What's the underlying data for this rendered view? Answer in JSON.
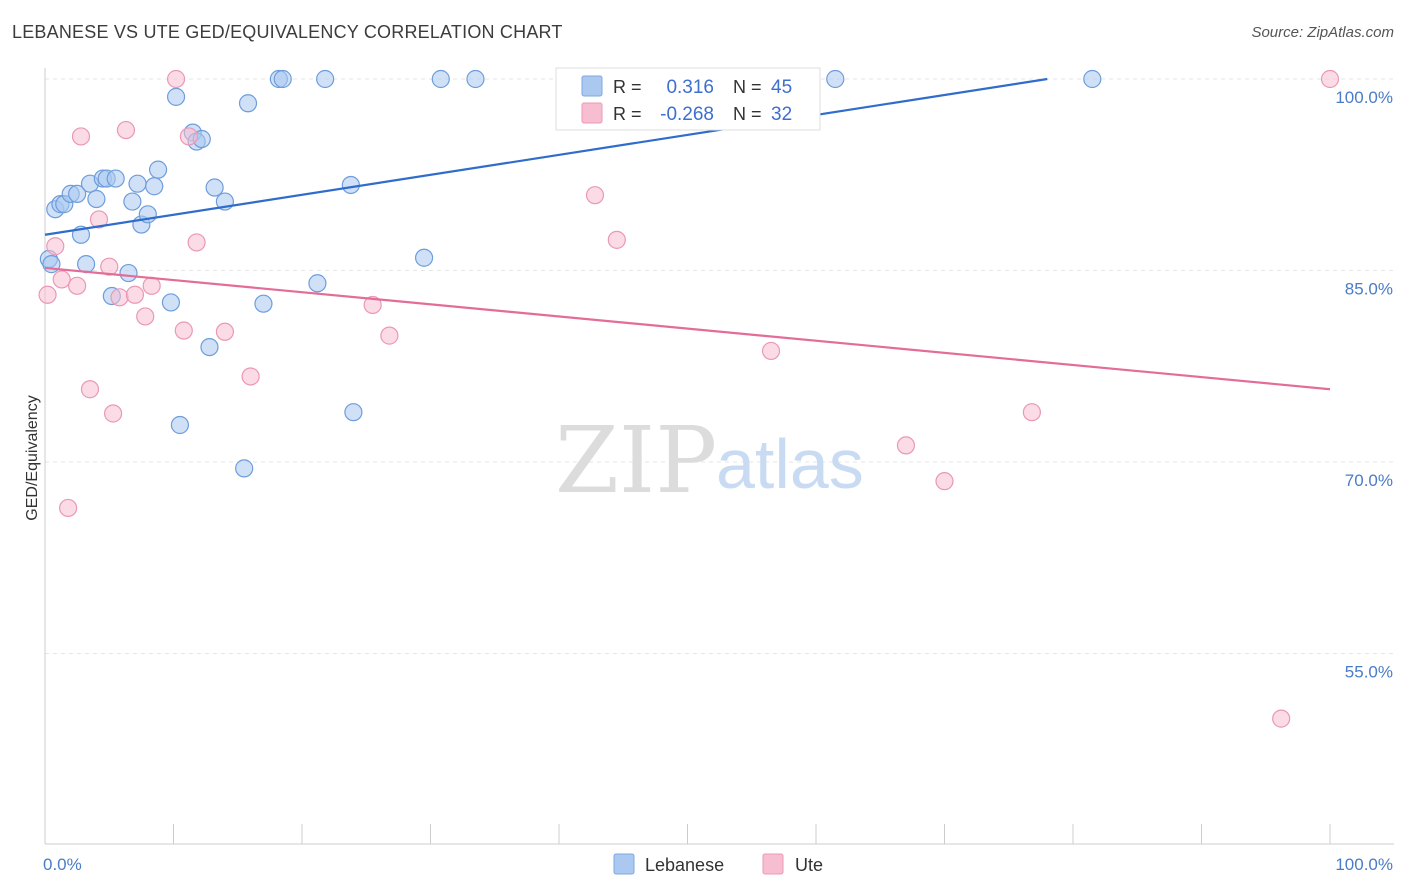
{
  "header": {
    "title": "LEBANESE VS UTE GED/EQUIVALENCY CORRELATION CHART",
    "source": "Source: ZipAtlas.com"
  },
  "watermark": {
    "zip": "ZIP",
    "atlas": "atlas"
  },
  "colors": {
    "blue": "#4a7cc7",
    "blue_fill": "#aac8f0",
    "blue_line": "#2f6ccb",
    "pink_fill": "#f7bdd0",
    "pink_line": "#e46c98"
  },
  "chart_data": {
    "type": "scatter",
    "title": "LEBANESE VS UTE GED/EQUIVALENCY CORRELATION CHART",
    "xlabel": "",
    "ylabel": "GED/Equivalency",
    "xlim": [
      0,
      100
    ],
    "ylim": [
      43,
      101
    ],
    "x_tick_labels": [
      "0.0%",
      "100.0%"
    ],
    "y_ticks": [
      100,
      85,
      70,
      55
    ],
    "y_tick_labels": [
      "100.0%",
      "85.0%",
      "70.0%",
      "55.0%"
    ],
    "grid": true,
    "legend_position": "top-center",
    "stats": [
      {
        "r_label": "R =",
        "r_value": "0.316",
        "n_label": "N =",
        "n_value": "45"
      },
      {
        "r_label": "R =",
        "r_value": "-0.268",
        "n_label": "N =",
        "n_value": "32"
      }
    ],
    "series": [
      {
        "name": "Lebanese",
        "color": "#aac8f0",
        "trend": [
          [
            0,
            87.8
          ],
          [
            78,
            100
          ]
        ],
        "points": [
          [
            0.3,
            85.9
          ],
          [
            0.8,
            89.8
          ],
          [
            1.2,
            90.2
          ],
          [
            1.5,
            90.2
          ],
          [
            2.0,
            91.0
          ],
          [
            2.5,
            91.0
          ],
          [
            2.8,
            87.8
          ],
          [
            3.2,
            85.5
          ],
          [
            3.5,
            91.8
          ],
          [
            4.0,
            90.6
          ],
          [
            4.5,
            92.2
          ],
          [
            4.8,
            92.2
          ],
          [
            5.5,
            92.2
          ],
          [
            5.2,
            83.0
          ],
          [
            6.5,
            84.8
          ],
          [
            6.8,
            90.4
          ],
          [
            7.2,
            91.8
          ],
          [
            7.5,
            88.6
          ],
          [
            8.0,
            89.4
          ],
          [
            8.5,
            91.6
          ],
          [
            8.8,
            92.9
          ],
          [
            9.8,
            82.5
          ],
          [
            10.2,
            98.6
          ],
          [
            10.5,
            72.9
          ],
          [
            11.5,
            95.8
          ],
          [
            11.8,
            95.1
          ],
          [
            12.2,
            95.3
          ],
          [
            12.8,
            79.0
          ],
          [
            13.2,
            91.5
          ],
          [
            14.0,
            90.4
          ],
          [
            15.5,
            69.5
          ],
          [
            15.8,
            98.1
          ],
          [
            17.0,
            82.4
          ],
          [
            18.2,
            100
          ],
          [
            18.5,
            100
          ],
          [
            21.2,
            84.0
          ],
          [
            21.8,
            100
          ],
          [
            23.8,
            91.7
          ],
          [
            24.0,
            73.9
          ],
          [
            29.5,
            86.0
          ],
          [
            30.8,
            100
          ],
          [
            33.5,
            100
          ],
          [
            61.5,
            100
          ],
          [
            81.5,
            100
          ],
          [
            0.5,
            85.5
          ]
        ]
      },
      {
        "name": "Ute",
        "color": "#f7bdd0",
        "trend": [
          [
            0,
            85.2
          ],
          [
            100,
            75.7
          ]
        ],
        "points": [
          [
            0.2,
            83.1
          ],
          [
            0.8,
            86.9
          ],
          [
            1.3,
            84.3
          ],
          [
            1.8,
            66.4
          ],
          [
            2.5,
            83.8
          ],
          [
            2.8,
            95.5
          ],
          [
            3.5,
            75.7
          ],
          [
            4.2,
            89.0
          ],
          [
            5.0,
            85.3
          ],
          [
            5.3,
            73.8
          ],
          [
            5.8,
            82.9
          ],
          [
            6.3,
            96.0
          ],
          [
            7.0,
            83.1
          ],
          [
            7.8,
            81.4
          ],
          [
            8.3,
            83.8
          ],
          [
            10.2,
            100
          ],
          [
            10.8,
            80.3
          ],
          [
            11.2,
            95.5
          ],
          [
            11.8,
            87.2
          ],
          [
            14.0,
            80.2
          ],
          [
            16.0,
            76.7
          ],
          [
            25.5,
            82.3
          ],
          [
            26.8,
            79.9
          ],
          [
            42.8,
            90.9
          ],
          [
            44.5,
            87.4
          ],
          [
            52.5,
            100
          ],
          [
            56.5,
            78.7
          ],
          [
            67.0,
            71.3
          ],
          [
            70.0,
            68.5
          ],
          [
            76.8,
            73.9
          ],
          [
            96.2,
            49.9
          ],
          [
            100,
            100
          ]
        ]
      }
    ]
  }
}
